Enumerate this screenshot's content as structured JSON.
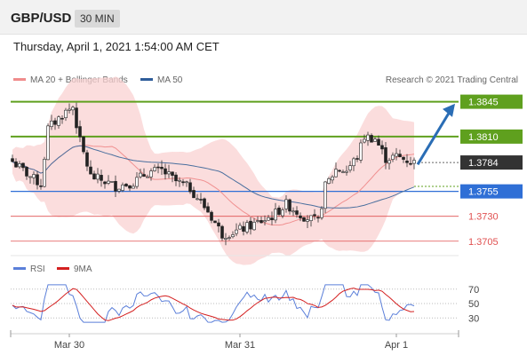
{
  "header": {
    "pair": "GBP/USD",
    "timeframe": "30 MIN"
  },
  "datetime": "Thursday, April 1, 2021 1:54:00 AM CET",
  "copyright": "Research © 2021 Trading Central",
  "colors": {
    "resistance": "#5fa01e",
    "support": "#2f6fd6",
    "pivot": "#e05050",
    "current": "#333333",
    "arrow": "#2a6db5",
    "bollinger": "#f9d2d2"
  },
  "chart_data": {
    "type": "candlestick",
    "legend": [
      "MA 20 + Bollinger Bands",
      "MA 50"
    ],
    "ylim": [
      1.3695,
      1.3858
    ],
    "levels": [
      {
        "label": "1.3845",
        "value": 1.3845,
        "kind": "resistance"
      },
      {
        "label": "1.3810",
        "value": 1.381,
        "kind": "resistance"
      },
      {
        "label": "1.3784",
        "value": 1.3784,
        "kind": "current"
      },
      {
        "label": "1.3755",
        "value": 1.3755,
        "kind": "support"
      },
      {
        "label": "1.3730",
        "value": 1.373,
        "kind": "pivot"
      },
      {
        "label": "1.3705",
        "value": 1.3705,
        "kind": "pivot"
      }
    ],
    "x_ticks": [
      "Mar 30",
      "Mar 31",
      "Apr 1"
    ],
    "x_tick_index": [
      16,
      64,
      108
    ],
    "n_bars": 114,
    "close_path": [
      [
        0,
        1.3785
      ],
      [
        5,
        1.377
      ],
      [
        8,
        1.3762
      ],
      [
        10,
        1.3818
      ],
      [
        15,
        1.3835
      ],
      [
        17,
        1.384
      ],
      [
        19,
        1.3805
      ],
      [
        22,
        1.377
      ],
      [
        26,
        1.3765
      ],
      [
        29,
        1.376
      ],
      [
        34,
        1.3764
      ],
      [
        38,
        1.3774
      ],
      [
        42,
        1.3776
      ],
      [
        46,
        1.3765
      ],
      [
        50,
        1.3758
      ],
      [
        55,
        1.3735
      ],
      [
        59,
        1.3712
      ],
      [
        63,
        1.3715
      ],
      [
        68,
        1.3722
      ],
      [
        73,
        1.373
      ],
      [
        77,
        1.3742
      ],
      [
        82,
        1.373
      ],
      [
        86,
        1.3724
      ],
      [
        88,
        1.376
      ],
      [
        91,
        1.3777
      ],
      [
        94,
        1.3776
      ],
      [
        97,
        1.379
      ],
      [
        99,
        1.381
      ],
      [
        102,
        1.3808
      ],
      [
        105,
        1.3788
      ],
      [
        108,
        1.379
      ],
      [
        113,
        1.3784
      ]
    ],
    "rsi": {
      "legend": [
        "RSI",
        "9MA"
      ],
      "levels": [
        70,
        50,
        30
      ],
      "ylim": [
        18,
        82
      ]
    }
  }
}
